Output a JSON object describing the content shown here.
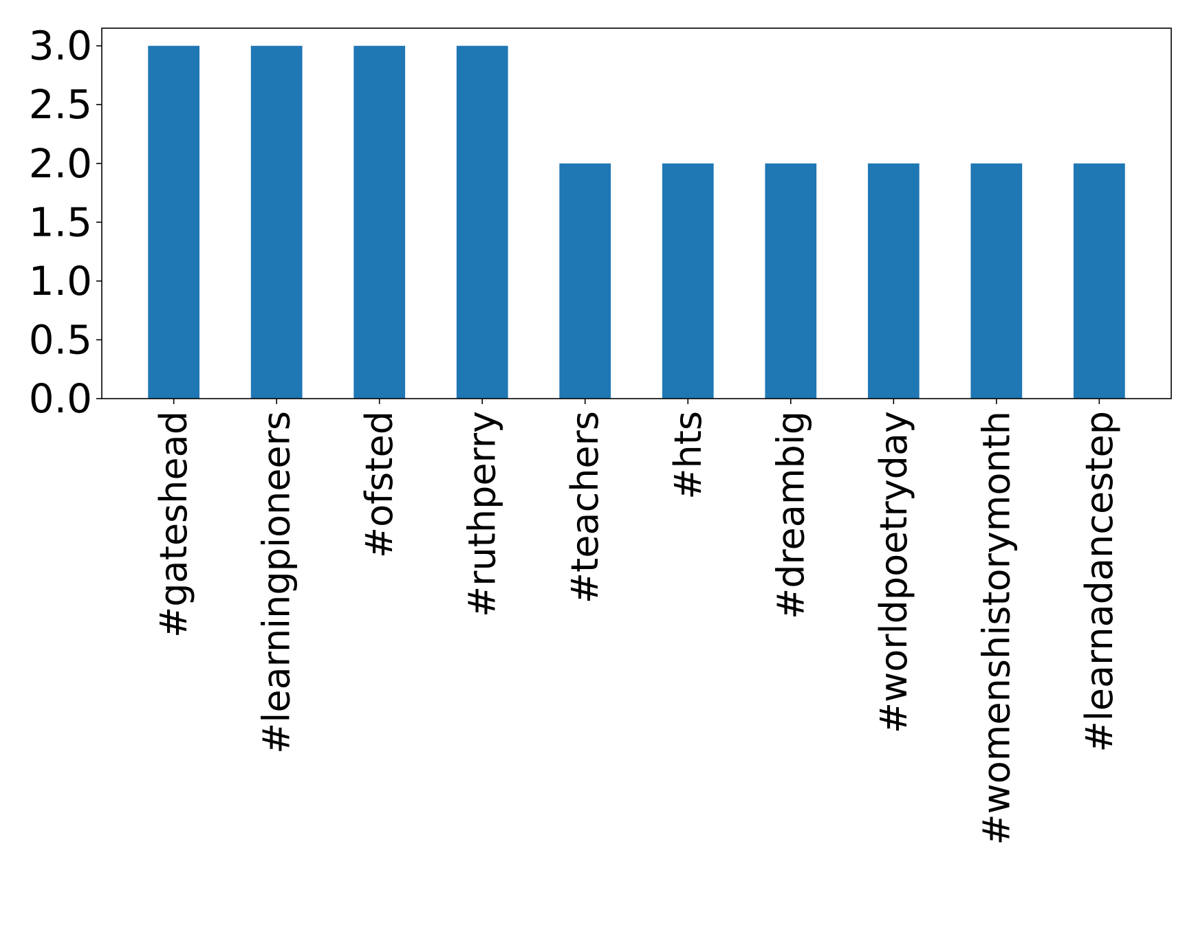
{
  "chart_data": {
    "type": "bar",
    "title": "",
    "xlabel": "",
    "ylabel": "",
    "categories": [
      "#gateshead",
      "#learningpioneers",
      "#ofsted",
      "#ruthperry",
      "#teachers",
      "#hts",
      "#dreambig",
      "#worldpoetryday",
      "#womenshistorymonth",
      "#learnadancestep"
    ],
    "values": [
      3,
      3,
      3,
      3,
      2,
      2,
      2,
      2,
      2,
      2
    ],
    "ylim": [
      0,
      3.15
    ],
    "yticks": [
      "0.0",
      "0.5",
      "1.0",
      "1.5",
      "2.0",
      "2.5",
      "3.0"
    ],
    "grid": false,
    "legend": "none",
    "bar_color": "#1f77b4"
  }
}
